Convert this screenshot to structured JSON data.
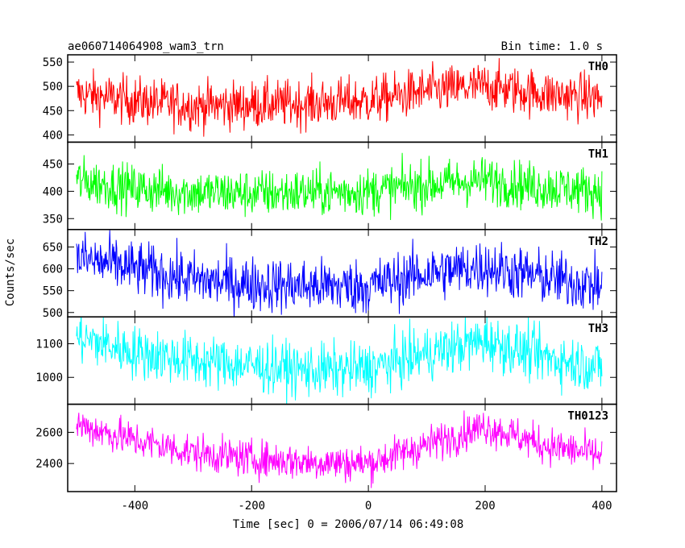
{
  "header": {
    "left_title": "ae060714064908_wam3_trn",
    "right_title": "Bin time: 1.0 s"
  },
  "chart_data": {
    "type": "line",
    "xlabel": "Time [sec] 0 = 2006/07/14 06:49:08",
    "ylabel": "Counts/sec",
    "xlim": [
      -515,
      425
    ],
    "x_ticks": [
      -400,
      -200,
      0,
      200,
      400
    ],
    "x_range": [
      -500,
      400
    ],
    "bin_time_s": 1.0,
    "series": [
      {
        "name": "TH0",
        "color": "#ff0000",
        "ylim": [
          385,
          565
        ],
        "y_ticks": [
          400,
          450,
          500,
          550
        ],
        "noise": 25,
        "trend_x": [
          -500,
          -400,
          -300,
          -200,
          -100,
          0,
          100,
          200,
          300,
          400
        ],
        "trend_y": [
          485,
          470,
          460,
          462,
          465,
          470,
          490,
          500,
          485,
          475
        ]
      },
      {
        "name": "TH1",
        "color": "#00ff00",
        "ylim": [
          330,
          490
        ],
        "y_ticks": [
          350,
          400,
          450
        ],
        "noise": 22,
        "trend_x": [
          -500,
          -400,
          -300,
          -200,
          -100,
          0,
          100,
          200,
          300,
          400
        ],
        "trend_y": [
          420,
          405,
          398,
          396,
          398,
          400,
          412,
          420,
          408,
          400
        ]
      },
      {
        "name": "TH2",
        "color": "#0000ff",
        "ylim": [
          490,
          690
        ],
        "y_ticks": [
          500,
          550,
          600,
          650
        ],
        "noise": 32,
        "trend_x": [
          -500,
          -400,
          -300,
          -200,
          -100,
          0,
          100,
          200,
          300,
          400
        ],
        "trend_y": [
          625,
          600,
          575,
          565,
          560,
          560,
          590,
          605,
          580,
          560
        ]
      },
      {
        "name": "TH3",
        "color": "#00ffff",
        "ylim": [
          920,
          1180
        ],
        "y_ticks": [
          1000,
          1100
        ],
        "noise": 40,
        "trend_x": [
          -500,
          -400,
          -300,
          -200,
          -100,
          0,
          100,
          200,
          300,
          400
        ],
        "trend_y": [
          1120,
          1075,
          1050,
          1035,
          1020,
          1025,
          1070,
          1110,
          1060,
          1030
        ]
      },
      {
        "name": "TH0123",
        "color": "#ff00ff",
        "ylim": [
          2220,
          2780
        ],
        "y_ticks": [
          2400,
          2600
        ],
        "noise": 60,
        "trend_x": [
          -500,
          -400,
          -300,
          -200,
          -100,
          0,
          100,
          200,
          300,
          400
        ],
        "trend_y": [
          2650,
          2550,
          2470,
          2430,
          2410,
          2400,
          2520,
          2640,
          2520,
          2450
        ]
      }
    ]
  }
}
